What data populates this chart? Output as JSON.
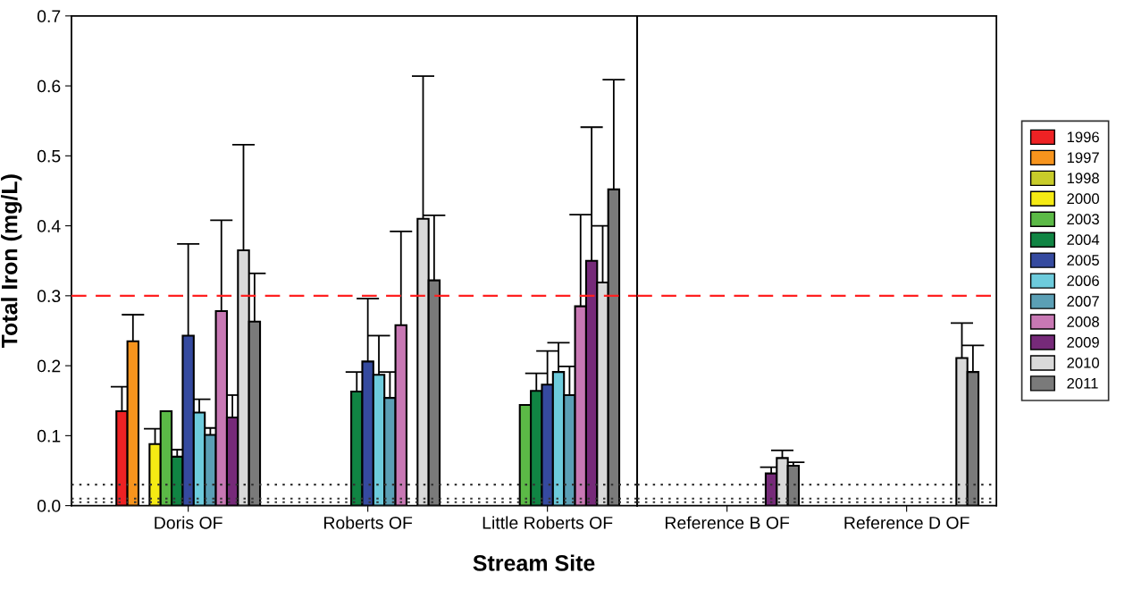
{
  "chart_data": [
    {
      "type": "bar",
      "xlabel": "Stream Site",
      "ylabel": "Total Iron (mg/L)",
      "categories": [
        "Doris OF",
        "Roberts OF",
        "Little Roberts OF"
      ],
      "series": [
        {
          "color": "#ee2224",
          "values": [
            0.135,
            null,
            null
          ],
          "errors": [
            [
              0.135,
              0.17
            ],
            null,
            null
          ]
        },
        {
          "color": "#f7941d",
          "values": [
            0.235,
            null,
            null
          ],
          "errors": [
            [
              0.235,
              0.273
            ],
            null,
            null
          ]
        },
        {
          "color": "#c8cc2a",
          "values": [
            null,
            null,
            null
          ]
        },
        {
          "color": "#f5ea14",
          "values": [
            0.088,
            null,
            null
          ],
          "errors": [
            [
              0.088,
              0.11
            ],
            null,
            null
          ]
        },
        {
          "color": "#5bb946",
          "values": [
            0.135,
            null,
            0.144
          ]
        },
        {
          "color": "#108443",
          "values": [
            0.07,
            0.163,
            0.164
          ],
          "errors": [
            [
              0.07,
              0.08
            ],
            [
              0.163,
              0.191
            ],
            [
              0.164,
              0.189
            ]
          ]
        },
        {
          "color": "#354a9f",
          "values": [
            0.243,
            0.206,
            0.173
          ],
          "errors": [
            [
              0.243,
              0.374
            ],
            [
              0.206,
              0.296
            ],
            [
              0.173,
              0.221
            ]
          ]
        },
        {
          "color": "#6dcbdc",
          "values": [
            0.133,
            0.187,
            0.191
          ],
          "errors": [
            [
              0.133,
              0.152
            ],
            [
              0.187,
              0.243
            ],
            [
              0.191,
              0.233
            ]
          ]
        },
        {
          "color": "#5b9fb5",
          "values": [
            0.101,
            0.154,
            0.158
          ],
          "errors": [
            [
              0.101,
              0.111
            ],
            [
              0.154,
              0.191
            ],
            [
              0.158,
              0.199
            ]
          ]
        },
        {
          "color": "#c878b4",
          "values": [
            0.278,
            0.258,
            0.285
          ],
          "errors": [
            [
              0.278,
              0.408
            ],
            [
              0.258,
              0.392
            ],
            [
              0.285,
              0.416
            ]
          ]
        },
        {
          "color": "#762a79",
          "values": [
            0.126,
            null,
            0.35
          ],
          "errors": [
            [
              0.126,
              0.158
            ],
            null,
            [
              0.35,
              0.541
            ]
          ]
        },
        {
          "color": "#d9d9d9",
          "values": [
            0.365,
            0.41,
            0.319
          ],
          "errors": [
            [
              0.365,
              0.516
            ],
            [
              0.41,
              0.614
            ],
            [
              0.319,
              0.4
            ]
          ]
        },
        {
          "color": "#7a7a7a",
          "values": [
            0.263,
            0.322,
            0.452
          ],
          "errors": [
            [
              0.263,
              0.332
            ],
            [
              0.322,
              0.415
            ],
            [
              0.452,
              0.609
            ]
          ]
        }
      ],
      "ylim": [
        0,
        0.7
      ],
      "yticks": [
        {
          "value": 0,
          "label": "0.0"
        },
        0.1,
        0.2,
        0.3,
        0.4,
        0.5,
        0.6,
        0.7
      ],
      "ref_lines": [
        {
          "axis": "y",
          "value": 0.3,
          "color": "#ff2020",
          "line_style": "dashed"
        },
        {
          "axis": "y",
          "value": 0.03,
          "color": "#333333",
          "line_style": "dotted"
        },
        {
          "axis": "y",
          "value": 0.01,
          "color": "#333333",
          "line_style": "dotted"
        },
        {
          "axis": "y",
          "value": 0.005,
          "color": "#333333",
          "line_style": "dotted"
        }
      ]
    },
    {
      "type": "bar",
      "tick_labels": "x",
      "categories": [
        "Reference B OF",
        "Reference D OF"
      ],
      "series": [
        {
          "name": "1996",
          "color": "#ee2224",
          "values": [
            null,
            null
          ]
        },
        {
          "name": "1997",
          "color": "#f7941d",
          "values": [
            null,
            null
          ]
        },
        {
          "name": "1998",
          "color": "#c8cc2a",
          "values": [
            null,
            null
          ]
        },
        {
          "name": "2000",
          "color": "#f5ea14",
          "values": [
            null,
            null
          ]
        },
        {
          "name": "2003",
          "color": "#5bb946",
          "values": [
            null,
            null
          ]
        },
        {
          "name": "2004",
          "color": "#108443",
          "values": [
            null,
            null
          ]
        },
        {
          "name": "2005",
          "color": "#354a9f",
          "values": [
            null,
            null
          ]
        },
        {
          "name": "2006",
          "color": "#6dcbdc",
          "values": [
            null,
            null
          ]
        },
        {
          "name": "2007",
          "color": "#5b9fb5",
          "values": [
            null,
            null
          ]
        },
        {
          "name": "2008",
          "color": "#c878b4",
          "values": [
            null,
            null
          ]
        },
        {
          "name": "2009",
          "color": "#762a79",
          "values": [
            0.046,
            null
          ],
          "errors": [
            [
              0.046,
              0.055
            ],
            null
          ]
        },
        {
          "name": "2010",
          "color": "#d9d9d9",
          "values": [
            0.068,
            0.211
          ],
          "errors": [
            [
              0.068,
              0.079
            ],
            [
              0.211,
              0.261
            ]
          ]
        },
        {
          "name": "2011",
          "color": "#7a7a7a",
          "values": [
            0.057,
            0.191
          ],
          "errors": [
            [
              0.057,
              0.062
            ],
            [
              0.191,
              0.229
            ]
          ]
        }
      ],
      "ylim": [
        0,
        0.7
      ],
      "yticks": [
        0,
        0.1,
        0.2,
        0.3,
        0.4,
        0.5,
        0.6,
        0.7
      ],
      "ref_lines": [
        {
          "axis": "y",
          "value": 0.3,
          "color": "#ff2020",
          "line_style": "dashed"
        },
        {
          "axis": "y",
          "value": 0.03,
          "color": "#333333",
          "line_style": "dotted"
        },
        {
          "axis": "y",
          "value": 0.01,
          "color": "#333333",
          "line_style": "dotted"
        },
        {
          "axis": "y",
          "value": 0.005,
          "color": "#333333",
          "line_style": "dotted"
        }
      ],
      "legend": "right"
    }
  ]
}
